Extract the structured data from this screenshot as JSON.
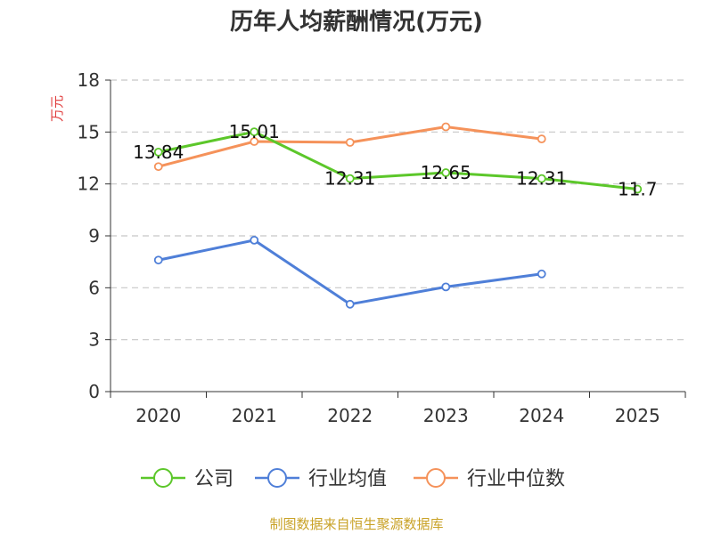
{
  "chart_data": {
    "type": "line",
    "title": "历年人均薪酬情况(万元)",
    "ylabel": "万元",
    "xlabel": "",
    "categories": [
      "2020",
      "2021",
      "2022",
      "2023",
      "2024",
      "2025"
    ],
    "ylim": [
      0,
      18
    ],
    "yticks": [
      0,
      3,
      6,
      9,
      12,
      15,
      18
    ],
    "grid": true,
    "legend_position": "bottom",
    "series": [
      {
        "name": "公司",
        "color": "#5cc72a",
        "values": [
          13.84,
          15.01,
          12.31,
          12.65,
          12.31,
          11.7
        ],
        "labels": [
          "13.84",
          "15.01",
          "12.31",
          "12.65",
          "12.31",
          "11.7"
        ]
      },
      {
        "name": "行业均值",
        "color": "#4f7fd8",
        "values": [
          7.6,
          8.75,
          5.05,
          6.05,
          6.8,
          null
        ]
      },
      {
        "name": "行业中位数",
        "color": "#f5925a",
        "values": [
          13.0,
          14.45,
          14.4,
          15.3,
          14.6,
          null
        ]
      }
    ]
  },
  "source": "制图数据来自恒生聚源数据库",
  "colors": {
    "ylabel": "#e03c3c",
    "source": "#c9a227",
    "grid": "#c8c8c8",
    "axis": "#333333"
  }
}
